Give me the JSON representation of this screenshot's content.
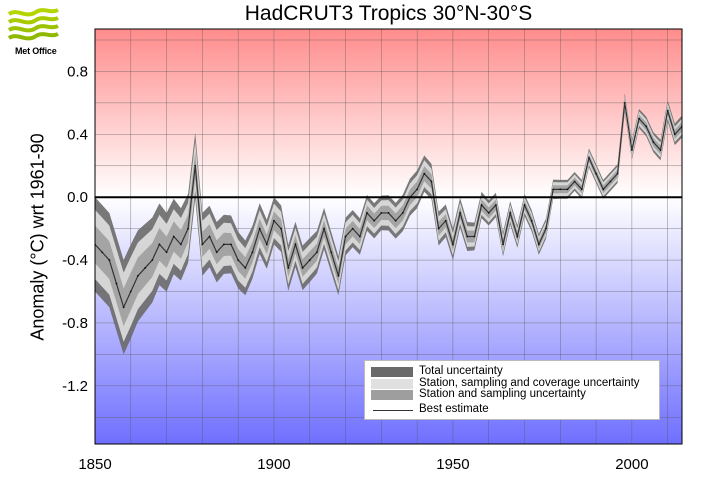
{
  "header": {
    "logo_text": "Met Office"
  },
  "chart_data": {
    "type": "line",
    "title": "HadCRUT3 Tropics 30°N-30°S",
    "ylabel": "Anomaly (°C) wrt 1961-90",
    "xlabel": "",
    "xlim": [
      1850,
      2014
    ],
    "ylim": [
      -1.57,
      1.07
    ],
    "x_ticks": [
      1850,
      1900,
      1950,
      2000
    ],
    "y_ticks": [
      -1.2,
      -0.8,
      -0.4,
      0.0,
      0.4,
      0.8
    ],
    "y_tick_labels": [
      "-1.2",
      "-0.8",
      "-0.4",
      "0.0",
      "0.4",
      "0.8"
    ],
    "grid": true,
    "background": {
      "top_color": "#ff8c8c",
      "zero_color": "#ffffff",
      "bottom_color": "#6f6fff"
    },
    "legend": {
      "position": "bottom-right",
      "entries": [
        {
          "label": "Total uncertainty",
          "color": "#6a6a6a"
        },
        {
          "label": "Station, sampling and coverage uncertainty",
          "color": "#e0e0e0"
        },
        {
          "label": "Station and sampling uncertainty",
          "color": "#9e9e9e"
        },
        {
          "label": "Best estimate",
          "color": "#333333"
        }
      ]
    },
    "series": [
      {
        "name": "Best estimate",
        "x": [
          1850,
          1852,
          1854,
          1856,
          1858,
          1860,
          1862,
          1864,
          1866,
          1868,
          1870,
          1872,
          1874,
          1876,
          1878,
          1880,
          1882,
          1884,
          1886,
          1888,
          1890,
          1892,
          1894,
          1896,
          1898,
          1900,
          1902,
          1904,
          1906,
          1908,
          1910,
          1912,
          1914,
          1916,
          1918,
          1920,
          1922,
          1924,
          1926,
          1928,
          1930,
          1932,
          1934,
          1936,
          1938,
          1940,
          1942,
          1944,
          1946,
          1948,
          1950,
          1952,
          1954,
          1956,
          1958,
          1960,
          1962,
          1964,
          1966,
          1968,
          1970,
          1972,
          1974,
          1976,
          1978,
          1980,
          1982,
          1984,
          1986,
          1988,
          1990,
          1992,
          1994,
          1996,
          1998,
          2000,
          2002,
          2004,
          2006,
          2008,
          2010,
          2012,
          2014
        ],
        "values": [
          -0.3,
          -0.35,
          -0.4,
          -0.55,
          -0.7,
          -0.6,
          -0.5,
          -0.45,
          -0.4,
          -0.3,
          -0.35,
          -0.25,
          -0.3,
          -0.2,
          0.2,
          -0.3,
          -0.25,
          -0.35,
          -0.3,
          -0.3,
          -0.4,
          -0.45,
          -0.35,
          -0.2,
          -0.3,
          -0.15,
          -0.2,
          -0.45,
          -0.3,
          -0.45,
          -0.4,
          -0.35,
          -0.2,
          -0.35,
          -0.5,
          -0.25,
          -0.2,
          -0.25,
          -0.1,
          -0.15,
          -0.1,
          -0.1,
          -0.15,
          -0.1,
          0.0,
          0.05,
          0.15,
          0.1,
          -0.2,
          -0.15,
          -0.3,
          -0.1,
          -0.25,
          -0.25,
          -0.05,
          -0.1,
          -0.05,
          -0.3,
          -0.1,
          -0.25,
          -0.05,
          -0.15,
          -0.3,
          -0.2,
          0.05,
          0.05,
          0.05,
          0.1,
          0.05,
          0.25,
          0.15,
          0.05,
          0.1,
          0.15,
          0.6,
          0.3,
          0.5,
          0.45,
          0.35,
          0.3,
          0.55,
          0.4,
          0.45
        ]
      },
      {
        "name": "Total uncertainty",
        "x": [
          1850,
          1860,
          1870,
          1880,
          1890,
          1900,
          1910,
          1920,
          1930,
          1940,
          1950,
          1960,
          1970,
          1980,
          1990,
          2000,
          2014
        ],
        "values": [
          0.3,
          0.3,
          0.25,
          0.2,
          0.18,
          0.15,
          0.14,
          0.12,
          0.11,
          0.12,
          0.1,
          0.08,
          0.07,
          0.06,
          0.06,
          0.06,
          0.07
        ]
      },
      {
        "name": "Station, sampling and coverage uncertainty",
        "x": [
          1850,
          1860,
          1870,
          1880,
          1890,
          1900,
          1910,
          1920,
          1930,
          1940,
          1950,
          1960,
          1970,
          1980,
          1990,
          2000,
          2014
        ],
        "values": [
          0.22,
          0.22,
          0.18,
          0.15,
          0.13,
          0.11,
          0.1,
          0.09,
          0.08,
          0.09,
          0.07,
          0.06,
          0.05,
          0.045,
          0.045,
          0.045,
          0.05
        ]
      },
      {
        "name": "Station and sampling uncertainty",
        "x": [
          1850,
          1860,
          1870,
          1880,
          1890,
          1900,
          1910,
          1920,
          1930,
          1940,
          1950,
          1960,
          1970,
          1980,
          1990,
          2000,
          2014
        ],
        "values": [
          0.12,
          0.12,
          0.1,
          0.08,
          0.07,
          0.06,
          0.055,
          0.05,
          0.045,
          0.05,
          0.04,
          0.035,
          0.03,
          0.025,
          0.025,
          0.025,
          0.03
        ]
      }
    ]
  }
}
